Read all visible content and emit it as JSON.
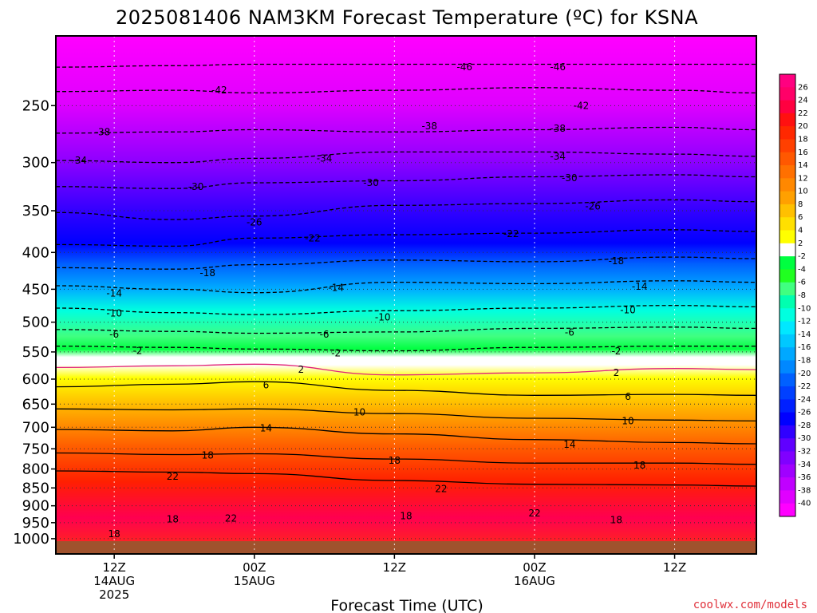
{
  "chart_data": {
    "type": "heatmap",
    "title": "2025081406 NAM3KM Forecast Temperature (ºC) for KSNA",
    "xlabel": "Forecast Time (UTC)",
    "ylabel": "",
    "credit": "coolwx.com/models",
    "y_scale": "log-pressure",
    "y_axis": {
      "unit": "hPa",
      "range": [
        1050,
        200
      ],
      "ticks": [
        250,
        300,
        350,
        400,
        450,
        500,
        550,
        600,
        650,
        700,
        750,
        800,
        850,
        900,
        950,
        1000
      ]
    },
    "x_axis": {
      "range": [
        "2025-08-14T07Z",
        "2025-08-16T19Z"
      ],
      "ticks": [
        {
          "time": "2025-08-14T12Z",
          "lines": [
            "12Z",
            "14AUG",
            "2025"
          ]
        },
        {
          "time": "2025-08-15T00Z",
          "lines": [
            "00Z",
            "15AUG"
          ]
        },
        {
          "time": "2025-08-15T12Z",
          "lines": [
            "12Z"
          ]
        },
        {
          "time": "2025-08-16T00Z",
          "lines": [
            "00Z",
            "16AUG"
          ]
        },
        {
          "time": "2025-08-16T12Z",
          "lines": [
            "12Z"
          ]
        }
      ]
    },
    "colorbar": {
      "ticks": [
        26,
        24,
        22,
        20,
        18,
        16,
        14,
        12,
        10,
        8,
        6,
        4,
        2,
        -2,
        -4,
        -6,
        -8,
        -10,
        -12,
        -14,
        -16,
        -18,
        -20,
        -22,
        -24,
        -26,
        -28,
        -30,
        -32,
        -34,
        -36,
        -38,
        -40
      ],
      "colors": [
        "#ff0080",
        "#ff0068",
        "#ff0040",
        "#ff1010",
        "#ff2800",
        "#ff4000",
        "#ff5800",
        "#ff7000",
        "#ff8800",
        "#ffa000",
        "#ffc000",
        "#ffe000",
        "#ffff00",
        "#ffffff",
        "#00ff40",
        "#20ff20",
        "#40ff80",
        "#00ffb0",
        "#00ffe0",
        "#00e8ff",
        "#00c8ff",
        "#00a8ff",
        "#0088ff",
        "#0060ff",
        "#0040ff",
        "#0020ff",
        "#0000ff",
        "#3000ff",
        "#6000ff",
        "#8000ff",
        "#a000ff",
        "#c000ff",
        "#e000ff",
        "#ff00ff"
      ]
    },
    "times": [
      "2025-08-14T07Z",
      "2025-08-14T17Z",
      "2025-08-15T00Z",
      "2025-08-15T12Z",
      "2025-08-16T00Z",
      "2025-08-16T12Z",
      "2025-08-16T19Z"
    ],
    "contours": [
      {
        "value": -46,
        "pressure": [
          221,
          220,
          219,
          219,
          219,
          219,
          219
        ]
      },
      {
        "value": -42,
        "pressure": [
          239,
          238,
          240,
          238,
          236,
          238,
          240
        ]
      },
      {
        "value": -38,
        "pressure": [
          273,
          272,
          270,
          272,
          270,
          268,
          270
        ]
      },
      {
        "value": -34,
        "pressure": [
          298,
          300,
          296,
          290,
          290,
          292,
          294
        ]
      },
      {
        "value": -30,
        "pressure": [
          324,
          326,
          320,
          318,
          314,
          312,
          314
        ]
      },
      {
        "value": -26,
        "pressure": [
          352,
          360,
          356,
          344,
          342,
          338,
          340
        ]
      },
      {
        "value": -22,
        "pressure": [
          390,
          392,
          382,
          378,
          376,
          372,
          374
        ]
      },
      {
        "value": -18,
        "pressure": [
          420,
          422,
          416,
          410,
          412,
          406,
          408
        ]
      },
      {
        "value": -14,
        "pressure": [
          445,
          450,
          455,
          440,
          442,
          438,
          440
        ]
      },
      {
        "value": -10,
        "pressure": [
          478,
          485,
          488,
          482,
          478,
          474,
          476
        ]
      },
      {
        "value": -6,
        "pressure": [
          512,
          515,
          518,
          516,
          510,
          508,
          510
        ]
      },
      {
        "value": -2,
        "pressure": [
          540,
          542,
          545,
          548,
          542,
          540,
          540
        ]
      },
      {
        "value": 2,
        "pressure": [
          578,
          575,
          572,
          592,
          588,
          580,
          582
        ]
      },
      {
        "value": 6,
        "pressure": [
          615,
          610,
          605,
          622,
          632,
          630,
          632
        ]
      },
      {
        "value": 10,
        "pressure": [
          660,
          662,
          660,
          670,
          680,
          684,
          686
        ]
      },
      {
        "value": 14,
        "pressure": [
          705,
          708,
          700,
          715,
          728,
          735,
          738
        ]
      },
      {
        "value": 18,
        "pressure": [
          760,
          764,
          762,
          775,
          785,
          785,
          788
        ]
      },
      {
        "value": 22,
        "pressure": [
          805,
          808,
          812,
          830,
          840,
          842,
          845
        ]
      }
    ],
    "contour_labels": [
      {
        "text": "-46",
        "time": "2025-08-15T18Z",
        "pressure": 221
      },
      {
        "text": "-46",
        "time": "2025-08-16T02Z",
        "pressure": 221
      },
      {
        "text": "-42",
        "time": "2025-08-14T21Z",
        "pressure": 238
      },
      {
        "text": "-42",
        "time": "2025-08-16T04Z",
        "pressure": 250
      },
      {
        "text": "-38",
        "time": "2025-08-14T11Z",
        "pressure": 272
      },
      {
        "text": "-38",
        "time": "2025-08-15T15Z",
        "pressure": 267
      },
      {
        "text": "-38",
        "time": "2025-08-16T02Z",
        "pressure": 269
      },
      {
        "text": "-34",
        "time": "2025-08-14T09Z",
        "pressure": 298
      },
      {
        "text": "-34",
        "time": "2025-08-15T06Z",
        "pressure": 296
      },
      {
        "text": "-34",
        "time": "2025-08-16T02Z",
        "pressure": 294
      },
      {
        "text": "-30",
        "time": "2025-08-14T19Z",
        "pressure": 324
      },
      {
        "text": "-30",
        "time": "2025-08-15T10Z",
        "pressure": 320
      },
      {
        "text": "-30",
        "time": "2025-08-16T03Z",
        "pressure": 315
      },
      {
        "text": "-26",
        "time": "2025-08-15T00Z",
        "pressure": 363
      },
      {
        "text": "-26",
        "time": "2025-08-16T05Z",
        "pressure": 345
      },
      {
        "text": "-22",
        "time": "2025-08-15T05Z",
        "pressure": 382
      },
      {
        "text": "-22",
        "time": "2025-08-15T22Z",
        "pressure": 377
      },
      {
        "text": "-18",
        "time": "2025-08-14T20Z",
        "pressure": 427
      },
      {
        "text": "-18",
        "time": "2025-08-16T07Z",
        "pressure": 411
      },
      {
        "text": "-14",
        "time": "2025-08-14T12Z",
        "pressure": 456
      },
      {
        "text": "-14",
        "time": "2025-08-15T07Z",
        "pressure": 448
      },
      {
        "text": "-14",
        "time": "2025-08-16T09Z",
        "pressure": 446
      },
      {
        "text": "-10",
        "time": "2025-08-14T12Z",
        "pressure": 486
      },
      {
        "text": "-10",
        "time": "2025-08-15T11Z",
        "pressure": 492
      },
      {
        "text": "-10",
        "time": "2025-08-16T08Z",
        "pressure": 481
      },
      {
        "text": "-6",
        "time": "2025-08-14T12Z",
        "pressure": 520
      },
      {
        "text": "-6",
        "time": "2025-08-15T06Z",
        "pressure": 520
      },
      {
        "text": "-6",
        "time": "2025-08-16T03Z",
        "pressure": 517
      },
      {
        "text": "-2",
        "time": "2025-08-14T14Z",
        "pressure": 548
      },
      {
        "text": "-2",
        "time": "2025-08-15T07Z",
        "pressure": 552
      },
      {
        "text": "-2",
        "time": "2025-08-16T07Z",
        "pressure": 549
      },
      {
        "text": "2",
        "time": "2025-08-15T04Z",
        "pressure": 582
      },
      {
        "text": "2",
        "time": "2025-08-16T07Z",
        "pressure": 588
      },
      {
        "text": "6",
        "time": "2025-08-15T01Z",
        "pressure": 612
      },
      {
        "text": "6",
        "time": "2025-08-16T08Z",
        "pressure": 635
      },
      {
        "text": "10",
        "time": "2025-08-15T09Z",
        "pressure": 667
      },
      {
        "text": "10",
        "time": "2025-08-16T08Z",
        "pressure": 686
      },
      {
        "text": "14",
        "time": "2025-08-15T01Z",
        "pressure": 702
      },
      {
        "text": "14",
        "time": "2025-08-16T03Z",
        "pressure": 740
      },
      {
        "text": "18",
        "time": "2025-08-14T20Z",
        "pressure": 766
      },
      {
        "text": "18",
        "time": "2025-08-15T12Z",
        "pressure": 779
      },
      {
        "text": "18",
        "time": "2025-08-16T09Z",
        "pressure": 791
      },
      {
        "text": "22",
        "time": "2025-08-14T17Z",
        "pressure": 820
      },
      {
        "text": "22",
        "time": "2025-08-15T16Z",
        "pressure": 853
      },
      {
        "text": "22",
        "time": "2025-08-16T00Z",
        "pressure": 922
      },
      {
        "text": "22",
        "time": "2025-08-14T22Z",
        "pressure": 937
      },
      {
        "text": "18",
        "time": "2025-08-14T17Z",
        "pressure": 940
      },
      {
        "text": "18",
        "time": "2025-08-15T13Z",
        "pressure": 930
      },
      {
        "text": "18",
        "time": "2025-08-16T07Z",
        "pressure": 942
      },
      {
        "text": "18",
        "time": "2025-08-14T12Z",
        "pressure": 985
      }
    ],
    "legend": "colorbar right",
    "grid": true
  }
}
